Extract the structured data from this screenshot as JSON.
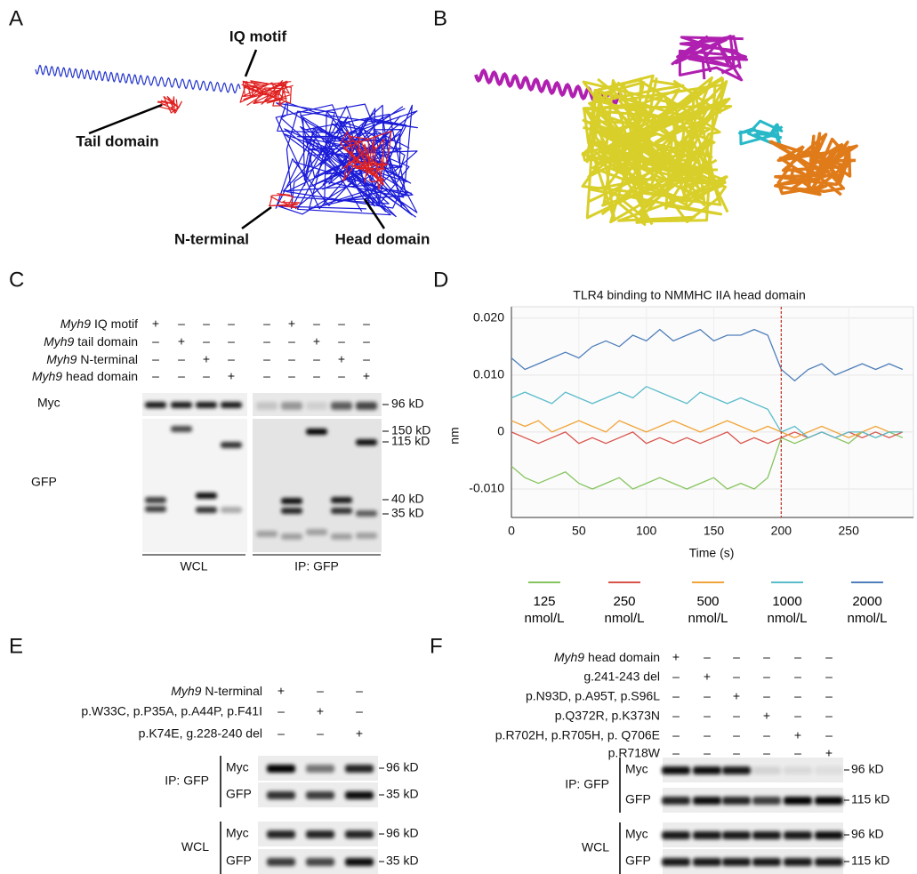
{
  "figure": {
    "A": {
      "label": "A",
      "annotations": [
        "IQ motif",
        "Tail domain",
        "N-terminal",
        "Head domain"
      ]
    },
    "B": {
      "label": "B"
    },
    "C": {
      "label": "C",
      "rows": [
        {
          "gene": "Myh9",
          "text": "IQ motif",
          "signs": [
            "+",
            "–",
            "–",
            "–",
            "–",
            "+",
            "–",
            "–",
            "–"
          ]
        },
        {
          "gene": "Myh9",
          "text": "tail domain",
          "signs": [
            "–",
            "+",
            "–",
            "–",
            "–",
            "–",
            "+",
            "–",
            "–"
          ]
        },
        {
          "gene": "Myh9",
          "text": "N-terminal",
          "signs": [
            "–",
            "–",
            "+",
            "–",
            "–",
            "–",
            "–",
            "+",
            "–"
          ]
        },
        {
          "gene": "Myh9",
          "text": "head domain",
          "signs": [
            "–",
            "–",
            "–",
            "+",
            "–",
            "–",
            "–",
            "–",
            "+"
          ]
        }
      ],
      "blots": [
        "Myc",
        "GFP"
      ],
      "markers": [
        "96 kD",
        "150 kD",
        "115 kD",
        "40 kD",
        "35 kD"
      ],
      "groups": [
        "WCL",
        "IP: GFP"
      ]
    },
    "D": {
      "label": "D"
    },
    "E": {
      "label": "E",
      "rows": [
        {
          "gene": "Myh9",
          "text": "N-terminal",
          "signs": [
            "+",
            "–",
            "–"
          ]
        },
        {
          "text": "p.W33C, p.P35A, p.A44P, p.F41I",
          "signs": [
            "–",
            "+",
            "–"
          ]
        },
        {
          "text": "p.K74E, g.228-240 del",
          "signs": [
            "–",
            "–",
            "+"
          ]
        }
      ],
      "groups": [
        {
          "name": "IP: GFP",
          "blots": [
            {
              "name": "Myc",
              "marker": "96 kD"
            },
            {
              "name": "GFP",
              "marker": "35 kD"
            }
          ]
        },
        {
          "name": "WCL",
          "blots": [
            {
              "name": "Myc",
              "marker": "96 kD"
            },
            {
              "name": "GFP",
              "marker": "35 kD"
            }
          ]
        }
      ]
    },
    "F": {
      "label": "F",
      "rows": [
        {
          "gene": "Myh9",
          "text": "head domain",
          "signs": [
            "+",
            "–",
            "–",
            "–",
            "–",
            "–"
          ]
        },
        {
          "text": "g.241-243 del",
          "signs": [
            "–",
            "+",
            "–",
            "–",
            "–",
            "–"
          ]
        },
        {
          "text": "p.N93D, p.A95T, p.S96L",
          "signs": [
            "–",
            "–",
            "+",
            "–",
            "–",
            "–"
          ]
        },
        {
          "text": "p.Q372R, p.K373N",
          "signs": [
            "–",
            "–",
            "–",
            "+",
            "–",
            "–"
          ]
        },
        {
          "text": "p.R702H, p.R705H, p. Q706E",
          "signs": [
            "–",
            "–",
            "–",
            "–",
            "+",
            "–"
          ]
        },
        {
          "text": "p.R718W",
          "signs": [
            "–",
            "–",
            "–",
            "–",
            "–",
            "+"
          ]
        }
      ],
      "groups": [
        {
          "name": "IP: GFP",
          "blots": [
            {
              "name": "Myc",
              "marker": "96 kD"
            },
            {
              "name": "GFP",
              "marker": "115 kD"
            }
          ]
        },
        {
          "name": "WCL",
          "blots": [
            {
              "name": "Myc",
              "marker": "96 kD"
            },
            {
              "name": "GFP",
              "marker": "115 kD"
            }
          ]
        }
      ]
    }
  },
  "chart_data": {
    "type": "line",
    "title": "TLR4 binding to NMMHC IIA head domain",
    "x_label": "Time (s)",
    "y_label": "nm",
    "x": [
      0,
      10,
      20,
      30,
      40,
      50,
      60,
      70,
      80,
      90,
      100,
      110,
      120,
      130,
      140,
      150,
      160,
      170,
      180,
      190,
      200,
      210,
      220,
      230,
      240,
      250,
      260,
      270,
      280,
      290
    ],
    "series": [
      {
        "name": "125 nmol/L",
        "color": "#86c45e",
        "values": [
          -0.006,
          -0.008,
          -0.009,
          -0.008,
          -0.007,
          -0.009,
          -0.01,
          -0.009,
          -0.008,
          -0.01,
          -0.009,
          -0.008,
          -0.009,
          -0.01,
          -0.009,
          -0.008,
          -0.01,
          -0.009,
          -0.01,
          -0.008,
          -0.001,
          -0.002,
          -0.001,
          0,
          -0.001,
          -0.002,
          0,
          -0.001,
          0,
          -0.001
        ]
      },
      {
        "name": "250 nmol/L",
        "color": "#d9534a",
        "values": [
          0,
          -0.001,
          -0.002,
          -0.001,
          0,
          -0.002,
          -0.001,
          -0.002,
          -0.001,
          0,
          -0.002,
          -0.001,
          -0.002,
          -0.001,
          -0.002,
          -0.001,
          0,
          -0.002,
          -0.001,
          -0.002,
          -0.001,
          0,
          -0.001,
          0,
          -0.001,
          0,
          -0.001,
          0,
          -0.001,
          0
        ]
      },
      {
        "name": "500 nmol/L",
        "color": "#f0a53a",
        "values": [
          0.002,
          0.001,
          0.002,
          0,
          0.001,
          0.002,
          0.001,
          0,
          0.002,
          0.001,
          0,
          0.001,
          0.002,
          0.001,
          0,
          0.001,
          0.002,
          0.001,
          0,
          0.001,
          0,
          -0.001,
          0,
          0.001,
          0,
          -0.001,
          0,
          0.001,
          0,
          0
        ]
      },
      {
        "name": "1000 nmol/L",
        "color": "#5bbccb",
        "values": [
          0.006,
          0.007,
          0.006,
          0.005,
          0.007,
          0.006,
          0.005,
          0.006,
          0.007,
          0.006,
          0.008,
          0.007,
          0.006,
          0.005,
          0.007,
          0.006,
          0.005,
          0.006,
          0.005,
          0.004,
          0,
          0.001,
          -0.001,
          0,
          -0.001,
          0,
          0,
          -0.001,
          0,
          0
        ]
      },
      {
        "name": "2000 nmol/L",
        "color": "#4f7fba",
        "values": [
          0.013,
          0.011,
          0.012,
          0.013,
          0.014,
          0.013,
          0.015,
          0.016,
          0.015,
          0.017,
          0.016,
          0.018,
          0.016,
          0.017,
          0.018,
          0.016,
          0.017,
          0.017,
          0.018,
          0.017,
          0.011,
          0.009,
          0.011,
          0.012,
          0.01,
          0.011,
          0.012,
          0.011,
          0.012,
          0.011
        ]
      }
    ],
    "xlim": [
      0,
      298
    ],
    "xticks": [
      0,
      50,
      100,
      150,
      200,
      250
    ],
    "ylim": [
      -0.015,
      0.022
    ],
    "yticks": [
      {
        "value": -0.01,
        "label": "-0.010"
      },
      0,
      {
        "value": 0.01,
        "label": "0.010"
      },
      {
        "value": 0.02,
        "label": "0.020"
      }
    ],
    "grid": true,
    "vline": 200,
    "vline_color": "#c0392b"
  }
}
